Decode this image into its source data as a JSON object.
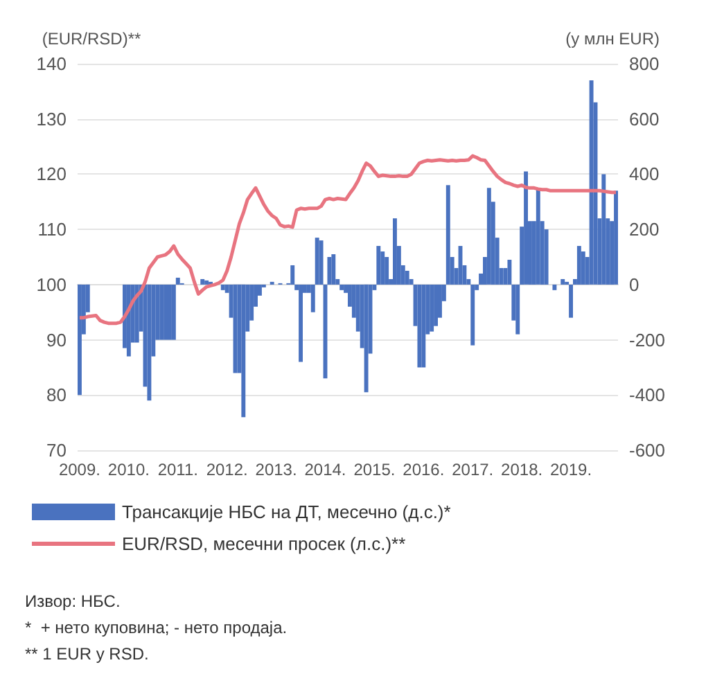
{
  "chart_data": {
    "type": "bar",
    "ylabel": "(EUR/RSD)**",
    "y2label": "(у млн EUR)",
    "categories": [
      "2009.",
      null,
      null,
      null,
      null,
      null,
      null,
      null,
      null,
      null,
      null,
      null,
      "2010.",
      null,
      null,
      null,
      null,
      null,
      null,
      null,
      null,
      null,
      null,
      null,
      "2011.",
      null,
      null,
      null,
      null,
      null,
      null,
      null,
      null,
      null,
      null,
      null,
      "2012.",
      null,
      null,
      null,
      null,
      null,
      null,
      null,
      null,
      null,
      null,
      null,
      "2013.",
      null,
      null,
      null,
      null,
      null,
      null,
      null,
      null,
      null,
      null,
      null,
      "2014.",
      null,
      null,
      null,
      null,
      null,
      null,
      null,
      null,
      null,
      null,
      null,
      "2015.",
      null,
      null,
      null,
      null,
      null,
      null,
      null,
      null,
      null,
      null,
      null,
      "2016.",
      null,
      null,
      null,
      null,
      null,
      null,
      null,
      null,
      null,
      null,
      null,
      "2017.",
      null,
      null,
      null,
      null,
      null,
      null,
      null,
      null,
      null,
      null,
      null,
      "2018.",
      null,
      null,
      null,
      null,
      null,
      null,
      null,
      null,
      null,
      null,
      null,
      "2019.",
      null,
      null,
      null,
      null,
      null,
      null,
      null,
      null,
      null,
      null,
      null
    ],
    "series": [
      {
        "name": "Трансакције НБС на ДТ, месечно (д.с.)*",
        "axis": "y2",
        "color": "#4a72bf",
        "values": [
          -400,
          -180,
          -100,
          0,
          0,
          0,
          0,
          0,
          0,
          0,
          0,
          -230,
          -260,
          -210,
          -210,
          -170,
          -370,
          -420,
          -260,
          -200,
          -200,
          -200,
          -200,
          -200,
          25,
          5,
          0,
          0,
          null,
          null,
          20,
          15,
          10,
          0,
          0,
          -20,
          -30,
          -120,
          -320,
          -320,
          -480,
          -170,
          -130,
          -80,
          -40,
          -10,
          0,
          10,
          0,
          5,
          0,
          5,
          70,
          -20,
          -280,
          -30,
          -30,
          -100,
          170,
          160,
          -340,
          100,
          110,
          20,
          -20,
          -30,
          -80,
          -120,
          -170,
          -230,
          -390,
          -250,
          -20,
          140,
          120,
          100,
          20,
          240,
          140,
          70,
          50,
          20,
          -150,
          -300,
          -300,
          -180,
          -170,
          -150,
          -120,
          -60,
          360,
          100,
          60,
          140,
          70,
          20,
          -220,
          -20,
          40,
          100,
          350,
          300,
          170,
          60,
          60,
          90,
          -130,
          -180,
          210,
          410,
          230,
          230,
          350,
          230,
          200,
          0,
          -20,
          0,
          20,
          10,
          -120,
          20,
          140,
          120,
          100,
          740,
          660,
          240,
          400,
          240,
          230,
          340
        ]
      },
      {
        "name": "EUR/RSD, месечни просек (л.с.)**",
        "type": "line",
        "axis": "y",
        "color": "#e87480",
        "values": [
          94,
          94,
          94.2,
          94.3,
          94.4,
          93.5,
          93.2,
          93,
          93,
          93,
          93.2,
          94.2,
          95.5,
          97,
          98,
          98.8,
          100.5,
          103,
          104,
          105,
          105.2,
          105.4,
          106,
          107,
          105.5,
          104.6,
          103.8,
          103,
          100.5,
          98.3,
          99,
          99.6,
          99.8,
          100,
          100.3,
          100.8,
          102.5,
          105,
          108,
          111,
          113,
          115.4,
          116.5,
          117.5,
          116,
          114.5,
          113.3,
          112.5,
          112,
          110.8,
          110.5,
          110.6,
          110.4,
          113.5,
          113.8,
          113.7,
          113.8,
          113.8,
          113.8,
          114.2,
          115.4,
          115.6,
          115.4,
          115.6,
          115.5,
          115.4,
          116.5,
          117.5,
          118.8,
          120.5,
          122,
          121.5,
          120.5,
          119.6,
          119.8,
          119.7,
          119.6,
          119.6,
          119.7,
          119.6,
          119.6,
          120,
          121,
          122,
          122.3,
          122.5,
          122.4,
          122.5,
          122.6,
          122.5,
          122.4,
          122.5,
          122.4,
          122.5,
          122.5,
          122.6,
          123.3,
          123,
          122.6,
          122.5,
          121.5,
          120.5,
          119.6,
          119,
          118.5,
          118.3,
          118,
          117.8,
          118,
          117.6,
          117.5,
          117.5,
          117.3,
          117.2,
          117.2,
          117,
          117,
          117,
          117,
          117,
          117,
          117,
          117,
          117,
          117,
          117,
          117,
          117,
          116.9,
          116.8,
          116.7,
          116.7
        ]
      }
    ],
    "ylim": [
      70,
      140
    ],
    "yticks": [
      70,
      80,
      90,
      100,
      110,
      120,
      130,
      140
    ],
    "y2lim": [
      -600,
      800
    ],
    "y2ticks": [
      -600,
      -400,
      -200,
      0,
      200,
      400,
      600,
      800
    ],
    "grid": "y",
    "legend": "bottom",
    "marker": "none",
    "line_style": "solid",
    "annotations": [
      "Извор: НБС.",
      "*  + нето куповина; - нето продаја.",
      "** 1 EUR у RSD."
    ]
  }
}
